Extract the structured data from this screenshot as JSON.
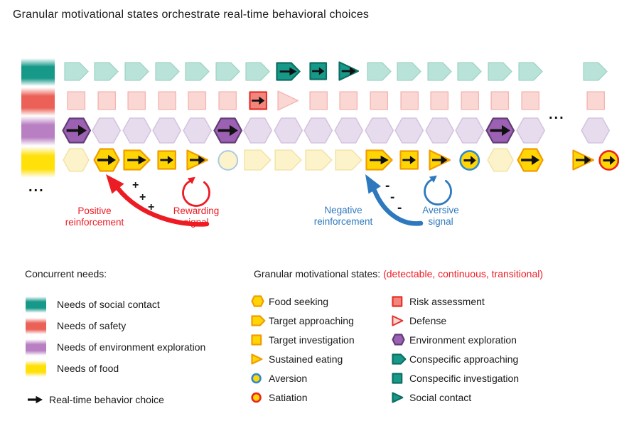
{
  "title": "Granular motivational states orchestrate real-time behavioral choices",
  "ellipsis_left": "...",
  "ellipsis_mid": "...",
  "palette": {
    "teal": {
      "faint_fill": "#b9e3d9",
      "faint_stroke": "#a2d5c7",
      "active_fill": "#17998a",
      "active_stroke": "#0d6e61"
    },
    "pink": {
      "faint_fill": "#fbd7d4",
      "faint_stroke": "#f3b6b2",
      "active_fill": "#f2867c",
      "active_stroke": "#e6302b"
    },
    "purple": {
      "faint_fill": "#e7dbee",
      "faint_stroke": "#d3c1de",
      "active_fill": "#9c61b3",
      "active_stroke": "#613d77"
    },
    "yellow": {
      "faint_fill": "#fdf3cb",
      "faint_stroke": "#f1e2a4",
      "active_fill": "#ffd506",
      "active_stroke": "#f09d00"
    },
    "ring_blue": "#2f89cc",
    "ring_blue_faint": "#a9cbe5",
    "ring_red": "#e9241f",
    "red_accent": "#ed1c24",
    "blue_accent": "#2e79bd",
    "ink": "#111111"
  },
  "needs_bars": [
    {
      "need": "social-contact",
      "color": "#17998a"
    },
    {
      "need": "safety",
      "color": "#eb6157"
    },
    {
      "need": "environment-exploration",
      "color": "#b97fc3"
    },
    {
      "need": "food",
      "color": "#ffe008"
    }
  ],
  "timeline": {
    "rows": [
      {
        "name": "social-contact",
        "scheme": "teal",
        "cells": [
          {
            "shape": "pentagon"
          },
          {
            "shape": "pentagon"
          },
          {
            "shape": "pentagon"
          },
          {
            "shape": "pentagon"
          },
          {
            "shape": "pentagon"
          },
          {
            "shape": "pentagon"
          },
          {
            "shape": "pentagon"
          },
          {
            "shape": "pentagon",
            "on": true,
            "arrow": true
          },
          {
            "shape": "square",
            "on": true,
            "arrow": true
          },
          {
            "shape": "triangle",
            "on": true,
            "arrow": true
          },
          {
            "shape": "pentagon"
          },
          {
            "shape": "pentagon"
          },
          {
            "shape": "pentagon"
          },
          {
            "shape": "pentagon"
          },
          {
            "shape": "pentagon"
          },
          {
            "shape": "pentagon"
          }
        ],
        "tail": [
          {
            "shape": "pentagon"
          }
        ]
      },
      {
        "name": "safety",
        "scheme": "pink",
        "cells": [
          {
            "shape": "square"
          },
          {
            "shape": "square"
          },
          {
            "shape": "square"
          },
          {
            "shape": "square"
          },
          {
            "shape": "square"
          },
          {
            "shape": "square"
          },
          {
            "shape": "square",
            "on": true,
            "arrow": true
          },
          {
            "shape": "triangle"
          },
          {
            "shape": "square"
          },
          {
            "shape": "square"
          },
          {
            "shape": "square"
          },
          {
            "shape": "square"
          },
          {
            "shape": "square"
          },
          {
            "shape": "square"
          },
          {
            "shape": "square"
          },
          {
            "shape": "square"
          }
        ],
        "tail": [
          {
            "shape": "square"
          }
        ]
      },
      {
        "name": "environment-exploration",
        "scheme": "purple",
        "cells": [
          {
            "shape": "hexagon",
            "on": true,
            "arrow": true
          },
          {
            "shape": "hexagon"
          },
          {
            "shape": "hexagon"
          },
          {
            "shape": "hexagon"
          },
          {
            "shape": "hexagon"
          },
          {
            "shape": "hexagon",
            "on": true,
            "arrow": true
          },
          {
            "shape": "hexagon"
          },
          {
            "shape": "hexagon"
          },
          {
            "shape": "hexagon"
          },
          {
            "shape": "hexagon"
          },
          {
            "shape": "hexagon"
          },
          {
            "shape": "hexagon"
          },
          {
            "shape": "hexagon"
          },
          {
            "shape": "hexagon"
          },
          {
            "shape": "hexagon",
            "on": true,
            "arrow": true
          },
          {
            "shape": "hexagon"
          }
        ],
        "tail": [
          {
            "shape": "hexagon"
          }
        ]
      },
      {
        "name": "food",
        "scheme": "yellow",
        "cells": [
          {
            "shape": "hexagon"
          },
          {
            "shape": "hexagon",
            "on": true,
            "arrow": true
          },
          {
            "shape": "pentagon",
            "on": true,
            "arrow": true
          },
          {
            "shape": "square",
            "on": true,
            "arrow": true
          },
          {
            "shape": "triangle",
            "on": true,
            "arrow": true
          },
          {
            "shape": "circle",
            "ring": "blue_faint"
          },
          {
            "shape": "pentagon"
          },
          {
            "shape": "pentagon"
          },
          {
            "shape": "pentagon"
          },
          {
            "shape": "pentagon"
          },
          {
            "shape": "pentagon",
            "on": true,
            "arrow": true
          },
          {
            "shape": "square",
            "on": true,
            "arrow": true
          },
          {
            "shape": "triangle",
            "on": true,
            "arrow": true
          },
          {
            "shape": "circle",
            "on": true,
            "ring": "blue",
            "arrow": true
          },
          {
            "shape": "hexagon"
          },
          {
            "shape": "hexagon",
            "on": true,
            "arrow": true
          }
        ],
        "tail": [
          {
            "shape": "triangle",
            "on": true,
            "arrow": true
          },
          {
            "shape": "circle",
            "on": true,
            "ring": "red",
            "arrow": true
          }
        ]
      }
    ]
  },
  "annotations": {
    "positive_reinforcement": {
      "line1": "Positive",
      "line2": "reinforcement",
      "sign": "+"
    },
    "rewarding_signal": {
      "line1": "Rewarding",
      "line2": "signal"
    },
    "negative_reinforcement": {
      "line1": "Negative",
      "line2": "reinforcement",
      "sign": "-"
    },
    "aversive_signal": {
      "line1": "Aversive",
      "line2": "signal"
    }
  },
  "legend_needs": {
    "header": "Concurrent needs:",
    "items": [
      {
        "label": "Needs of social contact",
        "color": "#17998a"
      },
      {
        "label": "Needs of safety",
        "color": "#eb6157"
      },
      {
        "label": "Needs of environment exploration",
        "color": "#b97fc3"
      },
      {
        "label": "Needs of food",
        "color": "#ffe008"
      }
    ],
    "behavior_choice_label": "Real-time behavior choice"
  },
  "legend_states": {
    "header": "Granular motivational states:",
    "note": "(detectable, continuous, transitional)",
    "columns": [
      [
        {
          "shape": "hexagon",
          "scheme": "yellow",
          "label": "Food seeking"
        },
        {
          "shape": "pentagon",
          "scheme": "yellow",
          "label": "Target approaching"
        },
        {
          "shape": "square",
          "scheme": "yellow",
          "label": "Target investigation"
        },
        {
          "shape": "triangle",
          "scheme": "yellow",
          "label": "Sustained eating"
        },
        {
          "shape": "circle",
          "scheme": "yellow",
          "ring": "blue",
          "label": "Aversion"
        },
        {
          "shape": "circle",
          "scheme": "yellow",
          "ring": "red",
          "label": "Satiation"
        }
      ],
      [
        {
          "shape": "square",
          "scheme": "pink",
          "label": "Risk assessment"
        },
        {
          "shape": "triangle",
          "scheme": "pink",
          "tone": "light",
          "label": "Defense"
        },
        {
          "shape": "hexagon",
          "scheme": "purple",
          "label": "Environment exploration"
        },
        {
          "shape": "pentagon",
          "scheme": "teal",
          "label": "Conspecific approaching"
        },
        {
          "shape": "square",
          "scheme": "teal",
          "label": "Conspecific investigation"
        },
        {
          "shape": "triangle",
          "scheme": "teal",
          "label": "Social contact"
        }
      ]
    ]
  }
}
